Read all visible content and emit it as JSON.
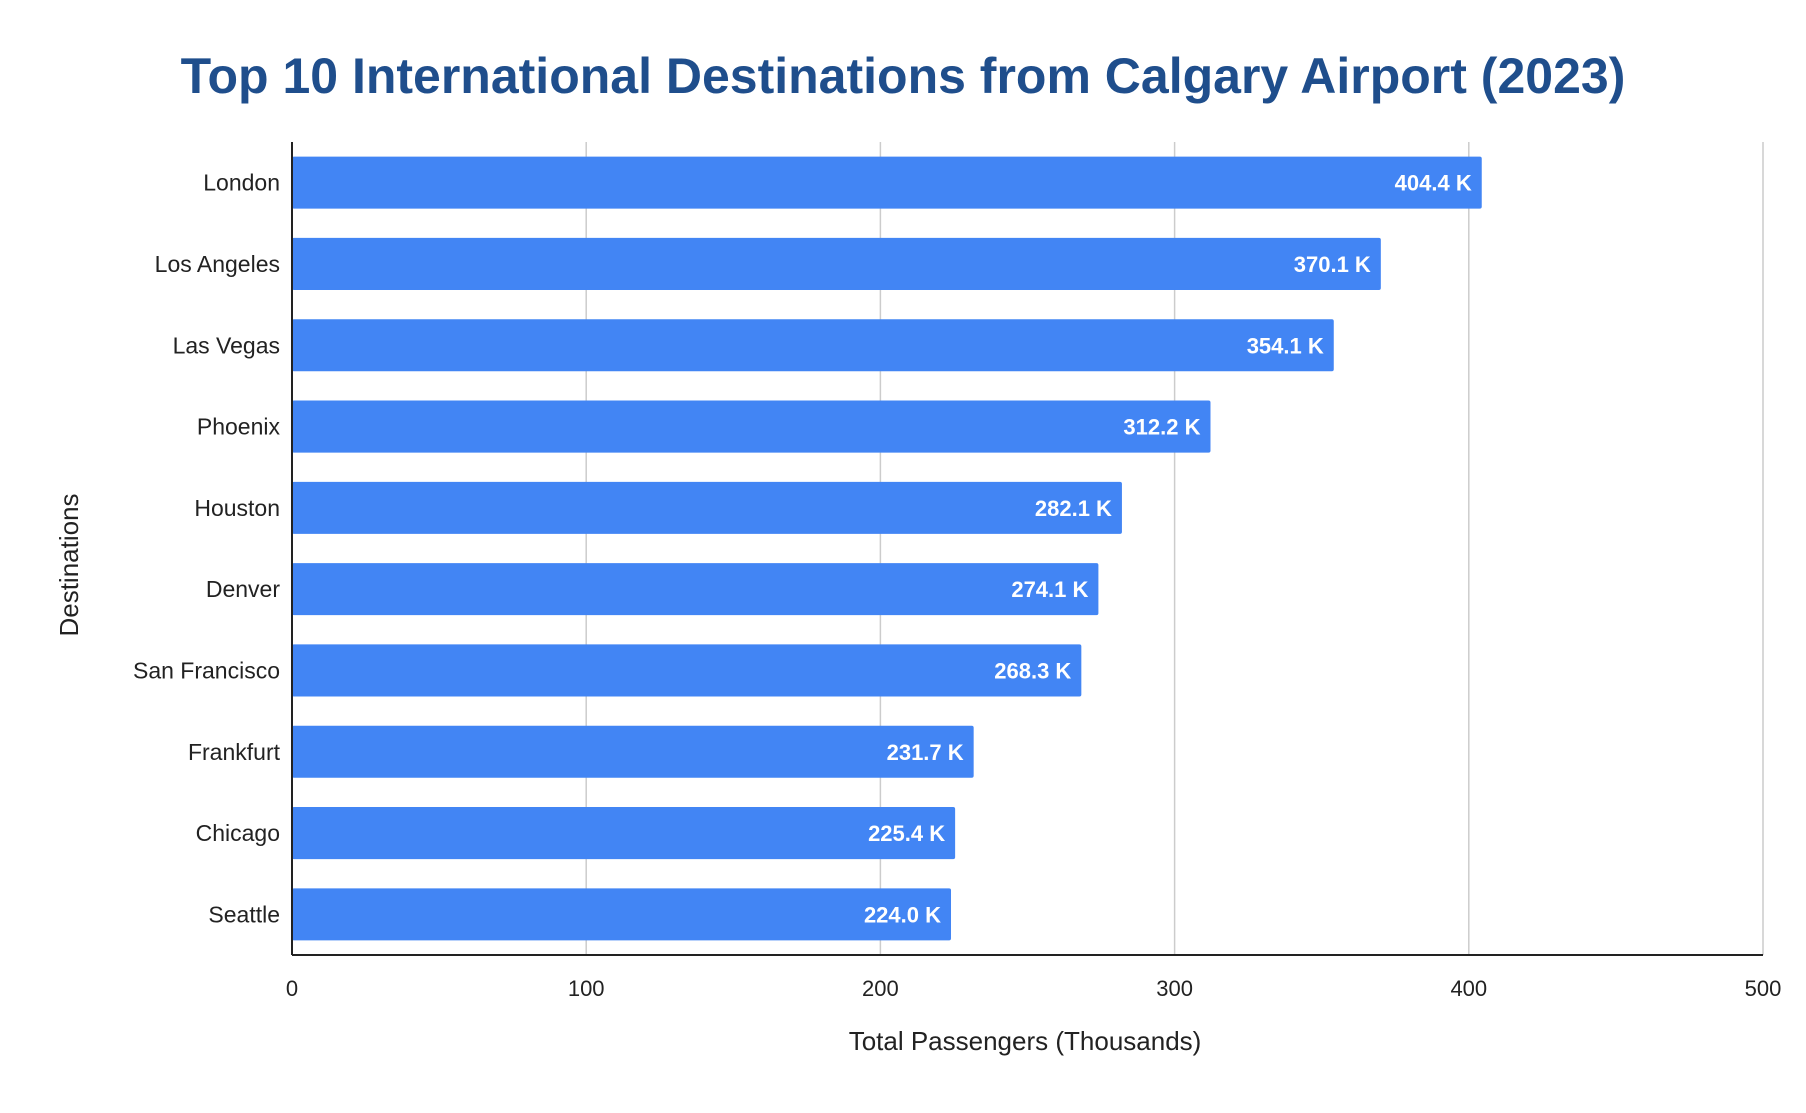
{
  "chart_data": {
    "type": "bar",
    "orientation": "horizontal",
    "title": "Top 10 International Destinations from Calgary Airport (2023)",
    "xlabel": "Total Passengers (Thousands)",
    "ylabel": "Destinations",
    "categories": [
      "London",
      "Los Angeles",
      "Las Vegas",
      "Phoenix",
      "Houston",
      "Denver",
      "San Francisco",
      "Frankfurt",
      "Chicago",
      "Seattle"
    ],
    "values": [
      404.4,
      370.1,
      354.1,
      312.2,
      282.1,
      274.1,
      268.3,
      231.7,
      225.4,
      224.0
    ],
    "data_labels": [
      "404.4 K",
      "370.1 K",
      "354.1 K",
      "312.2 K",
      "282.1 K",
      "274.1 K",
      "268.3 K",
      "231.7 K",
      "225.4 K",
      "224.0 K"
    ],
    "xlim": [
      0,
      500
    ],
    "xticks": [
      "0",
      "100",
      "200",
      "300",
      "400",
      "500"
    ],
    "grid": true,
    "legend": "none",
    "colors": {
      "bar": "#4285f4",
      "title": "#1f4e8c",
      "grid": "#cccccc",
      "axis": "#222222"
    }
  }
}
